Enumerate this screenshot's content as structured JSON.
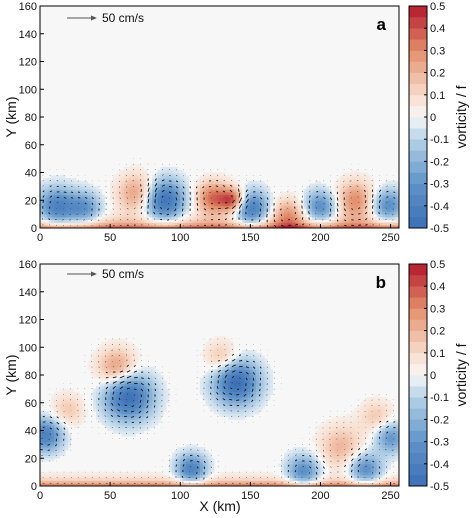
{
  "chart_data": [
    {
      "type": "heatmap",
      "panel_label": "a",
      "xlabel": "",
      "ylabel": "Y (km)",
      "xlim": [
        0,
        256
      ],
      "ylim": [
        0,
        160
      ],
      "xticks": [
        0,
        50,
        100,
        150,
        200,
        250
      ],
      "yticks": [
        0,
        20,
        40,
        60,
        80,
        100,
        120,
        140,
        160
      ],
      "velocity_scale": {
        "label": "50 cm/s",
        "speed_cm_s": 50
      },
      "colorbar": {
        "label": "vorticity / f",
        "min": -0.5,
        "max": 0.5,
        "ticks": [
          -0.5,
          -0.4,
          -0.3,
          -0.2,
          -0.1,
          0,
          0.1,
          0.2,
          0.3,
          0.4,
          0.5
        ]
      },
      "vortices": [
        {
          "x": 12,
          "y": 15,
          "radius": 14,
          "strength": -0.4
        },
        {
          "x": 32,
          "y": 14,
          "radius": 12,
          "strength": -0.3
        },
        {
          "x": 88,
          "y": 20,
          "radius": 15,
          "strength": -0.5
        },
        {
          "x": 150,
          "y": 14,
          "radius": 13,
          "strength": -0.45
        },
        {
          "x": 200,
          "y": 15,
          "radius": 12,
          "strength": -0.35
        },
        {
          "x": 248,
          "y": 16,
          "radius": 12,
          "strength": -0.35
        },
        {
          "x": 70,
          "y": 25,
          "radius": 14,
          "strength": 0.3
        },
        {
          "x": 123,
          "y": 22,
          "radius": 12,
          "strength": 0.35
        },
        {
          "x": 138,
          "y": 20,
          "radius": 9,
          "strength": 0.45
        },
        {
          "x": 177,
          "y": 10,
          "radius": 12,
          "strength": 0.25
        },
        {
          "x": 225,
          "y": 20,
          "radius": 14,
          "strength": 0.3
        }
      ],
      "wall_layer": {
        "strength": 0.55,
        "thickness_km": 5
      }
    },
    {
      "type": "heatmap",
      "panel_label": "b",
      "xlabel": "X (km)",
      "ylabel": "Y (km)",
      "xlim": [
        0,
        256
      ],
      "ylim": [
        0,
        160
      ],
      "xticks": [
        0,
        50,
        100,
        150,
        200,
        250
      ],
      "yticks": [
        0,
        20,
        40,
        60,
        80,
        100,
        120,
        140,
        160
      ],
      "velocity_scale": {
        "label": "50 cm/s",
        "speed_cm_s": 50
      },
      "colorbar": {
        "label": "vorticity / f",
        "min": -0.5,
        "max": 0.5,
        "ticks": [
          -0.5,
          -0.4,
          -0.3,
          -0.2,
          -0.1,
          0,
          0.1,
          0.2,
          0.3,
          0.4,
          0.5
        ]
      },
      "vortices": [
        {
          "x": 63,
          "y": 65,
          "radius": 17,
          "strength": -0.5
        },
        {
          "x": 140,
          "y": 75,
          "radius": 16,
          "strength": -0.5
        },
        {
          "x": 4,
          "y": 37,
          "radius": 12,
          "strength": -0.4
        },
        {
          "x": 108,
          "y": 12,
          "radius": 11,
          "strength": -0.4
        },
        {
          "x": 188,
          "y": 10,
          "radius": 12,
          "strength": -0.35
        },
        {
          "x": 232,
          "y": 12,
          "radius": 12,
          "strength": -0.35
        },
        {
          "x": 250,
          "y": 35,
          "radius": 11,
          "strength": -0.3
        },
        {
          "x": 55,
          "y": 85,
          "radius": 14,
          "strength": 0.3
        },
        {
          "x": 130,
          "y": 92,
          "radius": 12,
          "strength": 0.2
        },
        {
          "x": 20,
          "y": 55,
          "radius": 12,
          "strength": 0.15
        },
        {
          "x": 215,
          "y": 28,
          "radius": 16,
          "strength": 0.2
        },
        {
          "x": 240,
          "y": 50,
          "radius": 12,
          "strength": 0.15
        }
      ],
      "wall_layer": {
        "strength": 0.5,
        "thickness_km": 4
      }
    }
  ],
  "colormap": [
    {
      "v": -0.5,
      "color": "#3b6eb4"
    },
    {
      "v": -0.3,
      "color": "#5f93c9"
    },
    {
      "v": -0.1,
      "color": "#b6d2e8"
    },
    {
      "v": 0.0,
      "color": "#f7f7f7"
    },
    {
      "v": 0.1,
      "color": "#f8dccb"
    },
    {
      "v": 0.3,
      "color": "#e38e6b"
    },
    {
      "v": 0.5,
      "color": "#b2182b"
    }
  ]
}
